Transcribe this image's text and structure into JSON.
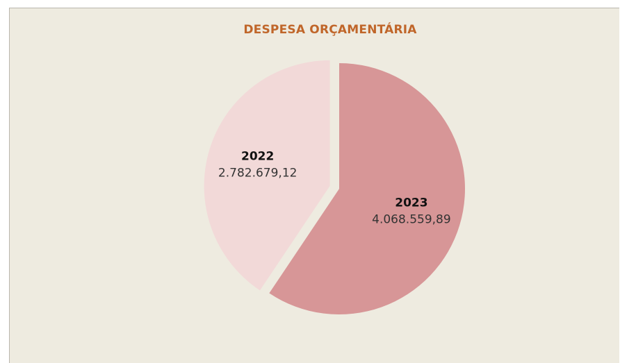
{
  "chart_data": {
    "type": "pie",
    "title": "DESPESA ORÇAMENTÁRIA",
    "categories": [
      "2023",
      "2022"
    ],
    "values": [
      4068559.89,
      2782679.12
    ],
    "value_labels": [
      "4.068.559,89",
      "2.782.679,12"
    ],
    "colors": [
      "#d79697",
      "#f2d9d8"
    ],
    "exploded": [
      false,
      true
    ],
    "legend": "none"
  }
}
